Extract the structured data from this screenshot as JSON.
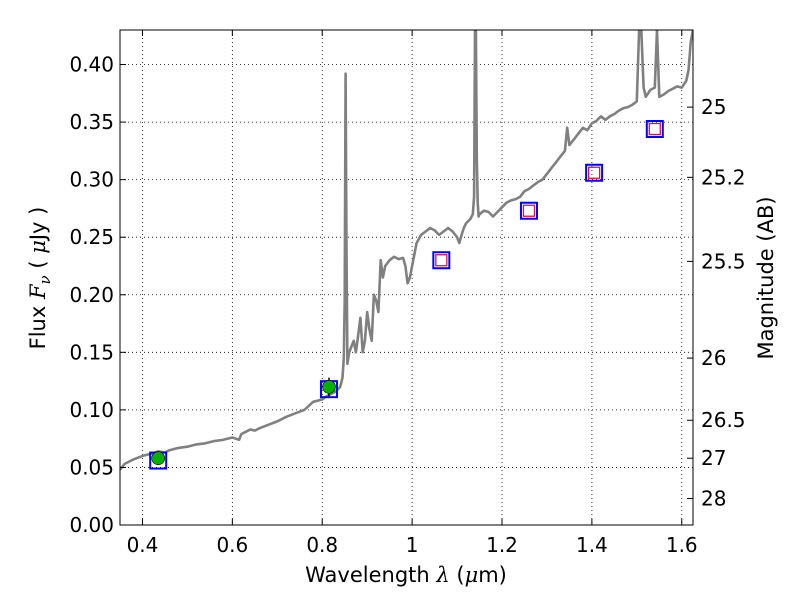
{
  "chart_data": {
    "type": "line",
    "title": "",
    "xlabel": "Wavelength  λ (μm)",
    "ylabel": "Flux  F_ν  ( μJy )",
    "ylabel_parts": {
      "pre": "Flux  ",
      "var": "F",
      "sub": "ν",
      "open": "  ( ",
      "mu": "μ",
      "post": "Jy )"
    },
    "xlabel_parts": {
      "pre": "Wavelength  ",
      "var": "λ",
      "open": " (",
      "mu": "μ",
      "post": "m)"
    },
    "y2label": "Magnitude (AB)",
    "xlim": [
      0.35,
      1.625
    ],
    "ylim": [
      0.0,
      0.43
    ],
    "grid": true,
    "x_ticks": [
      0.4,
      0.6,
      0.8,
      1.0,
      1.2,
      1.4,
      1.6
    ],
    "x_tick_labels": [
      "0.4",
      "0.6",
      "0.8",
      "1",
      "1.2",
      "1.4",
      "1.6"
    ],
    "y_ticks": [
      0.0,
      0.05,
      0.1,
      0.15,
      0.2,
      0.25,
      0.3,
      0.35,
      0.4
    ],
    "y_tick_labels": [
      "0.00",
      "0.05",
      "0.10",
      "0.15",
      "0.20",
      "0.25",
      "0.30",
      "0.35",
      "0.40"
    ],
    "y2_ticks": [
      {
        "label": "25",
        "flux": 0.363
      },
      {
        "label": "25.2",
        "flux": 0.302
      },
      {
        "label": "25.5",
        "flux": 0.229
      },
      {
        "label": "26",
        "flux": 0.145
      },
      {
        "label": "26.5",
        "flux": 0.091
      },
      {
        "label": "27",
        "flux": 0.058
      },
      {
        "label": "28",
        "flux": 0.023
      }
    ],
    "series": [
      {
        "name": "model-spectrum",
        "color": "#808080",
        "x": [
          0.35,
          0.36,
          0.38,
          0.4,
          0.42,
          0.435,
          0.45,
          0.46,
          0.48,
          0.5,
          0.52,
          0.54,
          0.56,
          0.58,
          0.6,
          0.615,
          0.62,
          0.63,
          0.64,
          0.65,
          0.66,
          0.68,
          0.7,
          0.72,
          0.74,
          0.76,
          0.78,
          0.79,
          0.8,
          0.81,
          0.82,
          0.83,
          0.835,
          0.84,
          0.845,
          0.848,
          0.85,
          0.852,
          0.854,
          0.856,
          0.86,
          0.865,
          0.87,
          0.875,
          0.88,
          0.885,
          0.89,
          0.895,
          0.9,
          0.905,
          0.91,
          0.915,
          0.92,
          0.925,
          0.93,
          0.935,
          0.94,
          0.95,
          0.96,
          0.97,
          0.98,
          0.985,
          0.99,
          0.995,
          1.0,
          1.01,
          1.02,
          1.03,
          1.04,
          1.05,
          1.06,
          1.07,
          1.08,
          1.09,
          1.1,
          1.105,
          1.11,
          1.115,
          1.12,
          1.13,
          1.135,
          1.138,
          1.14,
          1.142,
          1.144,
          1.146,
          1.148,
          1.15,
          1.16,
          1.17,
          1.18,
          1.19,
          1.2,
          1.21,
          1.22,
          1.23,
          1.24,
          1.25,
          1.26,
          1.27,
          1.28,
          1.29,
          1.3,
          1.31,
          1.32,
          1.33,
          1.34,
          1.345,
          1.35,
          1.36,
          1.37,
          1.38,
          1.39,
          1.4,
          1.41,
          1.42,
          1.43,
          1.44,
          1.45,
          1.46,
          1.47,
          1.48,
          1.49,
          1.5,
          1.505,
          1.51,
          1.515,
          1.52,
          1.53,
          1.54,
          1.545,
          1.55,
          1.56,
          1.57,
          1.58,
          1.59,
          1.6,
          1.61,
          1.615,
          1.62,
          1.625
        ],
        "y": [
          0.048,
          0.053,
          0.057,
          0.06,
          0.062,
          0.064,
          0.063,
          0.065,
          0.067,
          0.068,
          0.07,
          0.071,
          0.073,
          0.074,
          0.076,
          0.074,
          0.079,
          0.081,
          0.083,
          0.082,
          0.084,
          0.087,
          0.09,
          0.094,
          0.097,
          0.1,
          0.107,
          0.108,
          0.109,
          0.112,
          0.114,
          0.116,
          0.118,
          0.12,
          0.128,
          0.145,
          0.195,
          0.392,
          0.24,
          0.14,
          0.15,
          0.155,
          0.16,
          0.15,
          0.165,
          0.18,
          0.15,
          0.16,
          0.185,
          0.17,
          0.16,
          0.2,
          0.195,
          0.185,
          0.23,
          0.215,
          0.225,
          0.23,
          0.233,
          0.231,
          0.232,
          0.225,
          0.21,
          0.215,
          0.225,
          0.245,
          0.252,
          0.255,
          0.258,
          0.256,
          0.252,
          0.255,
          0.258,
          0.255,
          0.25,
          0.245,
          0.252,
          0.258,
          0.262,
          0.266,
          0.27,
          0.285,
          0.43,
          0.43,
          0.32,
          0.28,
          0.268,
          0.27,
          0.273,
          0.272,
          0.268,
          0.272,
          0.276,
          0.28,
          0.282,
          0.283,
          0.285,
          0.29,
          0.292,
          0.295,
          0.298,
          0.3,
          0.305,
          0.31,
          0.315,
          0.32,
          0.325,
          0.345,
          0.33,
          0.335,
          0.34,
          0.345,
          0.343,
          0.349,
          0.351,
          0.355,
          0.352,
          0.355,
          0.357,
          0.36,
          0.362,
          0.363,
          0.365,
          0.368,
          0.43,
          0.43,
          0.38,
          0.372,
          0.378,
          0.38,
          0.43,
          0.372,
          0.374,
          0.377,
          0.379,
          0.381,
          0.38,
          0.386,
          0.395,
          0.42,
          0.43
        ]
      },
      {
        "name": "observed-points",
        "x": [
          0.435,
          0.815
        ],
        "y": [
          0.058,
          0.12
        ],
        "yerr": [
          0.006,
          0.008
        ],
        "marker": "circle",
        "color": "#00b000"
      },
      {
        "name": "model-blue-squares",
        "x": [
          0.435,
          0.815,
          1.065,
          1.26,
          1.405,
          1.54
        ],
        "y": [
          0.056,
          0.118,
          0.23,
          0.273,
          0.306,
          0.344
        ],
        "marker": "square-open",
        "color": "#0000ff"
      },
      {
        "name": "model-red-squares",
        "x": [
          1.065,
          1.26,
          1.405,
          1.54
        ],
        "y": [
          0.23,
          0.273,
          0.306,
          0.344
        ],
        "marker": "square-open",
        "color": "#dc143c"
      }
    ]
  }
}
